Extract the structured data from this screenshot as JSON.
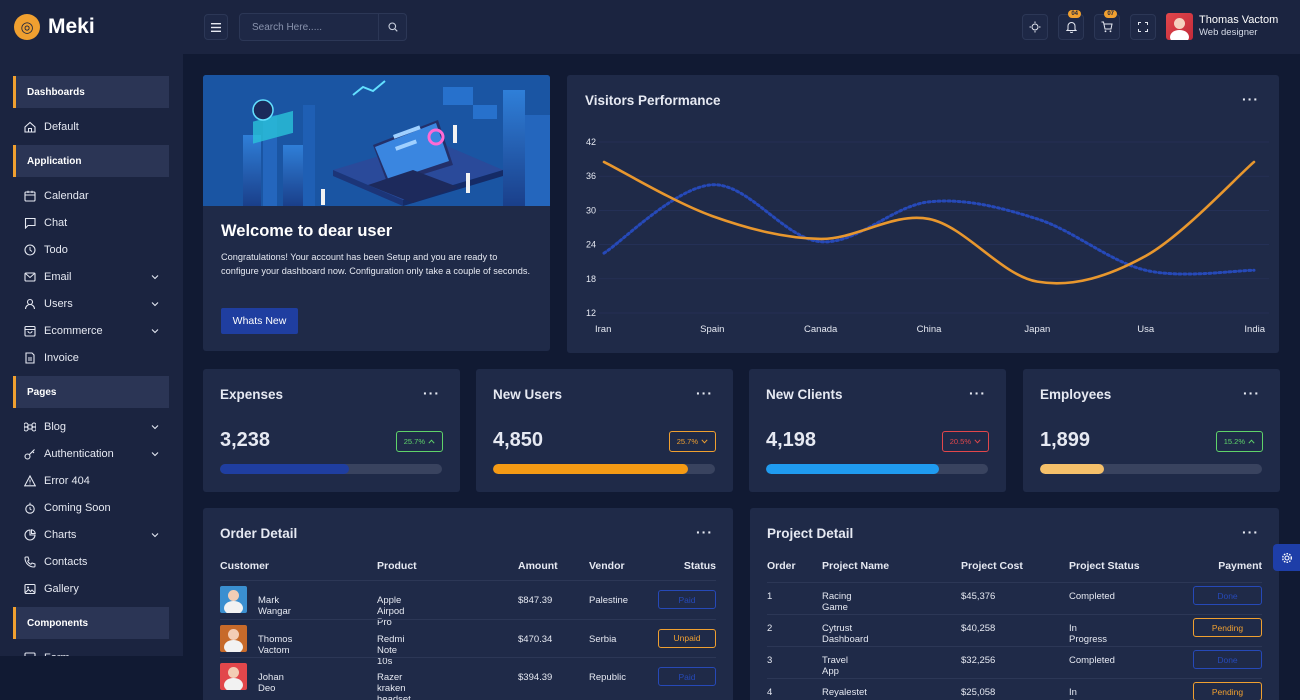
{
  "brand": {
    "name": "Meki",
    "mark": "◎"
  },
  "header": {
    "search_placeholder": "Search Here.....",
    "notifications_count": "04",
    "cart_count": "07",
    "user": {
      "name": "Thomas Vactom",
      "role": "Web designer"
    }
  },
  "sidebar": {
    "sections": [
      {
        "title": "Dashboards",
        "items": [
          {
            "label": "Default",
            "icon": "home-icon",
            "expandable": false
          }
        ]
      },
      {
        "title": "Application",
        "items": [
          {
            "label": "Calendar",
            "icon": "calendar-icon",
            "expandable": false
          },
          {
            "label": "Chat",
            "icon": "chat-icon",
            "expandable": false
          },
          {
            "label": "Todo",
            "icon": "clock-icon",
            "expandable": false
          },
          {
            "label": "Email",
            "icon": "mail-icon",
            "expandable": true
          },
          {
            "label": "Users",
            "icon": "user-icon",
            "expandable": true
          },
          {
            "label": "Ecommerce",
            "icon": "shop-icon",
            "expandable": true
          },
          {
            "label": "Invoice",
            "icon": "invoice-icon",
            "expandable": false
          }
        ]
      },
      {
        "title": "Pages",
        "items": [
          {
            "label": "Blog",
            "icon": "command-icon",
            "expandable": true
          },
          {
            "label": "Authentication",
            "icon": "key-icon",
            "expandable": true
          },
          {
            "label": "Error 404",
            "icon": "warning-icon",
            "expandable": false
          },
          {
            "label": "Coming Soon",
            "icon": "stopwatch-icon",
            "expandable": false
          },
          {
            "label": "Charts",
            "icon": "pie-icon",
            "expandable": true
          },
          {
            "label": "Contacts",
            "icon": "phone-icon",
            "expandable": false
          },
          {
            "label": "Gallery",
            "icon": "image-icon",
            "expandable": false
          }
        ]
      },
      {
        "title": "Components",
        "items": [
          {
            "label": "Form",
            "icon": "form-icon",
            "expandable": false
          }
        ]
      }
    ]
  },
  "welcome": {
    "title": "Welcome to dear user",
    "text": "Congratulations! Your account has been Setup and you are ready to configure your dashboard now. Configuration only take a couple of seconds.",
    "button": "Whats New"
  },
  "visitors": {
    "title": "Visitors Performance",
    "chart_data": {
      "type": "line",
      "categories": [
        "Iran",
        "Spain",
        "Canada",
        "China",
        "Japan",
        "Usa",
        "India"
      ],
      "ylim": [
        12,
        42
      ],
      "yticks": [
        12,
        18,
        24,
        30,
        36,
        42
      ],
      "series": [
        {
          "values": [
            38.5,
            29,
            25,
            28.5,
            17.5,
            22,
            38.5
          ],
          "color": "#e8972e",
          "style": "solid"
        },
        {
          "values": [
            22.5,
            34.5,
            24.5,
            31.5,
            28.5,
            19.5,
            19.5
          ],
          "color": "#2649b8",
          "style": "dotted"
        }
      ]
    }
  },
  "stats": [
    {
      "title": "Expenses",
      "value": "3,238",
      "change": "25.7%",
      "trend": "up",
      "badge_color": "#5fd36a",
      "fill_color": "#1f3ea0",
      "progress": 0.58
    },
    {
      "title": "New Users",
      "value": "4,850",
      "change": "25.7%",
      "trend": "down",
      "badge_color": "#f0a030",
      "fill_color": "#f59a14",
      "progress": 0.88
    },
    {
      "title": "New Clients",
      "value": "4,198",
      "change": "20.5%",
      "trend": "down",
      "badge_color": "#e2474b",
      "fill_color": "#1f9bf0",
      "progress": 0.78
    },
    {
      "title": "Employees",
      "value": "1,899",
      "change": "15.2%",
      "trend": "up",
      "badge_color": "#5fd36a",
      "fill_color": "#f5c06a",
      "progress": 0.29
    }
  ],
  "orders": {
    "title": "Order Detail",
    "columns": [
      "Customer",
      "Product",
      "Amount",
      "Vendor",
      "Status"
    ],
    "rows": [
      {
        "customer": "Mark Wangar",
        "product": "Apple Airpod Pro",
        "amount": "$847.39",
        "vendor": "Palestine",
        "status": "Paid",
        "status_color": "#2649b8",
        "avatar_color": "#3a8fd0"
      },
      {
        "customer": "Thomos Vactom",
        "product": "Redmi Note 10s",
        "amount": "$470.34",
        "vendor": "Serbia",
        "status": "Unpaid",
        "status_color": "#f0a030",
        "avatar_color": "#c76a2a"
      },
      {
        "customer": "Johan Deo",
        "product": "Razer kraken headset",
        "amount": "$394.39",
        "vendor": "Republic",
        "status": "Paid",
        "status_color": "#2649b8",
        "avatar_color": "#e2474b"
      }
    ]
  },
  "projects": {
    "title": "Project Detail",
    "columns": [
      "Order",
      "Project Name",
      "Project Cost",
      "Project Status",
      "Payment"
    ],
    "rows": [
      {
        "order": "1",
        "name": "Racing Game",
        "cost": "$45,376",
        "status": "Completed",
        "payment": "Done",
        "payment_color": "#2649b8"
      },
      {
        "order": "2",
        "name": "Cytrust Dashboard",
        "cost": "$40,258",
        "status": "In Progress",
        "payment": "Pending",
        "payment_color": "#f0a030"
      },
      {
        "order": "3",
        "name": "Travel App",
        "cost": "$32,256",
        "status": "Completed",
        "payment": "Done",
        "payment_color": "#2649b8"
      },
      {
        "order": "4",
        "name": "Reyalestet App",
        "cost": "$25,058",
        "status": "In Progress",
        "payment": "Pending",
        "payment_color": "#f0a030"
      }
    ]
  }
}
